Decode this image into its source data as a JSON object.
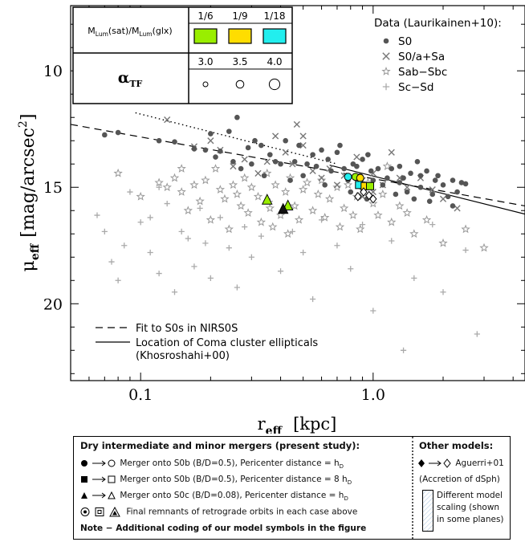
{
  "chart_data": {
    "type": "scatter",
    "xlabel": "r",
    "xlabel_sub": "eff",
    "xlabel_unit": "[kpc]",
    "ylabel": "μ",
    "ylabel_sub": "eff",
    "ylabel_unit": "[mag/arcsec",
    "ylabel_sup": "2",
    "ylabel_close": "]",
    "x_scale": "log",
    "xlim": [
      0.05,
      4.5
    ],
    "ylim": [
      23.3,
      7.2
    ],
    "x_ticks": [
      {
        "value": 0.1,
        "label": "0.1"
      },
      {
        "value": 1.0,
        "label": "1.0"
      }
    ],
    "y_ticks": [
      {
        "value": 10,
        "label": "10"
      },
      {
        "value": 15,
        "label": "15"
      },
      {
        "value": 20,
        "label": "20"
      }
    ],
    "legend_data_title": "Data (Laurikainen+10):",
    "legend_entries": [
      {
        "symbol": "dot",
        "label": "S0",
        "color": "#555555"
      },
      {
        "symbol": "cross",
        "label": "S0/a+Sa",
        "color": "#777777"
      },
      {
        "symbol": "star",
        "label": "Sab−Sbc",
        "color": "#999999"
      },
      {
        "symbol": "plus",
        "label": "Sc−Sd",
        "color": "#aaaaaa"
      }
    ],
    "ratio_table": {
      "row1_label": "M",
      "row1_label_parts": [
        "Lum",
        "(sat)/M",
        "Lum",
        "(glx)"
      ],
      "ratios": [
        "1/6",
        "1/9",
        "1/18"
      ],
      "colors": [
        "#99ee00",
        "#ffdd00",
        "#22eeee"
      ],
      "alpha_label": "α",
      "alpha_sub": "TF",
      "alpha_values": [
        "3.0",
        "3.5",
        "4.0"
      ]
    },
    "lines": [
      {
        "name": "Fit to S0s in NIRS0S",
        "style": "dashed",
        "points": [
          [
            0.05,
            12.3
          ],
          [
            4.5,
            15.8
          ]
        ]
      },
      {
        "name": "Location of Coma cluster ellipticals (Khosroshahi+00)",
        "style": "solid",
        "points": [
          [
            0.65,
            14.05
          ],
          [
            4.5,
            16.15
          ]
        ]
      },
      {
        "name": "",
        "style": "dotted",
        "points": [
          [
            0.095,
            11.8
          ],
          [
            0.7,
            14.0
          ]
        ]
      }
    ],
    "line_legend": [
      {
        "style": "dashed",
        "label": "Fit to S0s in NIRS0S"
      },
      {
        "style": "solid",
        "label": "Location of Coma cluster ellipticals"
      },
      {
        "style": "none",
        "label": "(Khosroshahi+00)"
      }
    ],
    "series": [
      {
        "name": "S0",
        "marker": "dot",
        "points": [
          [
            0.07,
            12.75
          ],
          [
            0.08,
            12.65
          ],
          [
            0.12,
            13.0
          ],
          [
            0.14,
            13.05
          ],
          [
            0.17,
            13.35
          ],
          [
            0.19,
            13.4
          ],
          [
            0.2,
            12.7
          ],
          [
            0.21,
            13.7
          ],
          [
            0.22,
            13.45
          ],
          [
            0.24,
            12.6
          ],
          [
            0.25,
            13.9
          ],
          [
            0.26,
            12.0
          ],
          [
            0.27,
            14.2
          ],
          [
            0.29,
            13.3
          ],
          [
            0.3,
            14.0
          ],
          [
            0.31,
            13.0
          ],
          [
            0.33,
            13.2
          ],
          [
            0.34,
            14.5
          ],
          [
            0.36,
            13.6
          ],
          [
            0.38,
            13.9
          ],
          [
            0.4,
            14.0
          ],
          [
            0.42,
            13.0
          ],
          [
            0.44,
            14.7
          ],
          [
            0.46,
            13.9
          ],
          [
            0.48,
            13.2
          ],
          [
            0.5,
            14.5
          ],
          [
            0.52,
            14.0
          ],
          [
            0.55,
            13.6
          ],
          [
            0.57,
            14.1
          ],
          [
            0.6,
            13.4
          ],
          [
            0.62,
            14.9
          ],
          [
            0.64,
            13.8
          ],
          [
            0.66,
            14.3
          ],
          [
            0.7,
            13.5
          ],
          [
            0.72,
            13.2
          ],
          [
            0.75,
            14.2
          ],
          [
            0.78,
            14.7
          ],
          [
            0.82,
            14.0
          ],
          [
            0.85,
            14.1
          ],
          [
            0.88,
            14.5
          ],
          [
            0.9,
            13.8
          ],
          [
            0.95,
            13.6
          ],
          [
            0.98,
            14.3
          ],
          [
            1.0,
            14.7
          ],
          [
            1.05,
            14.2
          ],
          [
            1.1,
            14.9
          ],
          [
            1.15,
            14.6
          ],
          [
            1.2,
            14.2
          ],
          [
            1.25,
            15.3
          ],
          [
            1.3,
            14.8
          ],
          [
            1.35,
            14.6
          ],
          [
            1.4,
            15.2
          ],
          [
            1.45,
            14.4
          ],
          [
            1.5,
            15.5
          ],
          [
            1.55,
            13.9
          ],
          [
            1.6,
            15.0
          ],
          [
            1.7,
            14.3
          ],
          [
            1.8,
            15.3
          ],
          [
            1.9,
            14.5
          ],
          [
            2.0,
            14.9
          ],
          [
            2.1,
            15.4
          ],
          [
            2.2,
            14.7
          ],
          [
            2.3,
            15.2
          ],
          [
            2.4,
            14.8
          ],
          [
            2.5,
            14.85
          ],
          [
            1.3,
            14.1
          ],
          [
            1.6,
            14.5
          ],
          [
            1.75,
            15.6
          ],
          [
            2.2,
            15.8
          ],
          [
            0.94,
            15.5
          ],
          [
            1.85,
            14.7
          ],
          [
            0.8,
            15.2
          ]
        ]
      },
      {
        "name": "S0/a+Sa",
        "marker": "cross",
        "points": [
          [
            0.13,
            12.1
          ],
          [
            0.17,
            13.25
          ],
          [
            0.2,
            13.0
          ],
          [
            0.22,
            13.4
          ],
          [
            0.25,
            14.1
          ],
          [
            0.28,
            13.8
          ],
          [
            0.32,
            14.4
          ],
          [
            0.35,
            13.9
          ],
          [
            0.38,
            12.8
          ],
          [
            0.42,
            13.5
          ],
          [
            0.45,
            14.0
          ],
          [
            0.5,
            13.2
          ],
          [
            0.55,
            14.3
          ],
          [
            0.6,
            14.6
          ],
          [
            0.65,
            14.2
          ],
          [
            0.7,
            14.9
          ],
          [
            0.75,
            14.5
          ],
          [
            0.85,
            13.7
          ],
          [
            0.9,
            14.7
          ],
          [
            1.0,
            14.4
          ],
          [
            1.1,
            14.9
          ],
          [
            1.2,
            13.5
          ],
          [
            1.3,
            14.6
          ],
          [
            1.4,
            15.0
          ],
          [
            1.6,
            14.6
          ],
          [
            1.8,
            15.1
          ],
          [
            2.0,
            15.5
          ],
          [
            2.3,
            15.9
          ],
          [
            0.47,
            12.3
          ],
          [
            0.5,
            12.8
          ],
          [
            0.9,
            15.4
          ],
          [
            1.0,
            15.2
          ]
        ]
      },
      {
        "name": "Sab−Sbc",
        "marker": "star",
        "points": [
          [
            0.08,
            14.4
          ],
          [
            0.1,
            15.4
          ],
          [
            0.12,
            14.8
          ],
          [
            0.13,
            15.0
          ],
          [
            0.14,
            14.6
          ],
          [
            0.15,
            15.2
          ],
          [
            0.16,
            16.0
          ],
          [
            0.17,
            14.9
          ],
          [
            0.18,
            15.6
          ],
          [
            0.19,
            14.7
          ],
          [
            0.2,
            16.4
          ],
          [
            0.21,
            14.2
          ],
          [
            0.22,
            15.1
          ],
          [
            0.23,
            15.5
          ],
          [
            0.24,
            16.8
          ],
          [
            0.25,
            14.9
          ],
          [
            0.26,
            15.3
          ],
          [
            0.27,
            15.8
          ],
          [
            0.28,
            14.6
          ],
          [
            0.29,
            16.1
          ],
          [
            0.3,
            15.0
          ],
          [
            0.32,
            15.4
          ],
          [
            0.33,
            16.5
          ],
          [
            0.35,
            14.4
          ],
          [
            0.36,
            15.9
          ],
          [
            0.38,
            14.9
          ],
          [
            0.4,
            16.2
          ],
          [
            0.42,
            15.2
          ],
          [
            0.44,
            14.6
          ],
          [
            0.46,
            15.8
          ],
          [
            0.48,
            16.4
          ],
          [
            0.5,
            15.1
          ],
          [
            0.52,
            14.8
          ],
          [
            0.55,
            16.0
          ],
          [
            0.58,
            15.3
          ],
          [
            0.6,
            14.7
          ],
          [
            0.62,
            16.3
          ],
          [
            0.65,
            15.5
          ],
          [
            0.7,
            15.0
          ],
          [
            0.72,
            16.7
          ],
          [
            0.75,
            15.9
          ],
          [
            0.78,
            14.9
          ],
          [
            0.82,
            16.2
          ],
          [
            0.85,
            15.4
          ],
          [
            0.88,
            16.8
          ],
          [
            0.9,
            15.1
          ],
          [
            0.95,
            14.8
          ],
          [
            1.0,
            15.7
          ],
          [
            1.05,
            16.2
          ],
          [
            1.1,
            15.3
          ],
          [
            1.2,
            16.5
          ],
          [
            1.3,
            15.8
          ],
          [
            1.4,
            16.1
          ],
          [
            1.5,
            17.0
          ],
          [
            1.7,
            16.4
          ],
          [
            2.0,
            17.4
          ],
          [
            2.5,
            16.8
          ],
          [
            3.0,
            17.6
          ],
          [
            0.15,
            14.2
          ],
          [
            0.37,
            16.7
          ],
          [
            0.43,
            17.0
          ],
          [
            1.15,
            14.1
          ]
        ]
      },
      {
        "name": "Sc−Sd",
        "marker": "plus",
        "points": [
          [
            0.065,
            16.2
          ],
          [
            0.07,
            16.9
          ],
          [
            0.075,
            18.2
          ],
          [
            0.08,
            19.0
          ],
          [
            0.085,
            17.5
          ],
          [
            0.09,
            15.2
          ],
          [
            0.1,
            16.5
          ],
          [
            0.11,
            17.8
          ],
          [
            0.12,
            18.7
          ],
          [
            0.13,
            15.7
          ],
          [
            0.14,
            19.5
          ],
          [
            0.15,
            16.9
          ],
          [
            0.16,
            17.2
          ],
          [
            0.17,
            18.4
          ],
          [
            0.18,
            15.9
          ],
          [
            0.19,
            17.4
          ],
          [
            0.2,
            18.9
          ],
          [
            0.22,
            16.3
          ],
          [
            0.24,
            17.6
          ],
          [
            0.26,
            19.3
          ],
          [
            0.28,
            16.7
          ],
          [
            0.3,
            18.0
          ],
          [
            0.33,
            17.1
          ],
          [
            0.36,
            15.6
          ],
          [
            0.4,
            18.6
          ],
          [
            0.45,
            16.9
          ],
          [
            0.5,
            17.8
          ],
          [
            0.55,
            19.8
          ],
          [
            0.6,
            16.4
          ],
          [
            0.7,
            17.5
          ],
          [
            0.8,
            18.5
          ],
          [
            0.9,
            16.6
          ],
          [
            1.0,
            20.3
          ],
          [
            1.2,
            17.3
          ],
          [
            1.5,
            18.9
          ],
          [
            1.8,
            16.6
          ],
          [
            2.0,
            19.5
          ],
          [
            2.5,
            17.7
          ],
          [
            2.8,
            21.3
          ],
          [
            1.35,
            22.0
          ],
          [
            0.12,
            15.0
          ],
          [
            0.11,
            16.3
          ]
        ]
      }
    ],
    "model_points": [
      {
        "marker": "triangle",
        "x": 0.35,
        "y": 15.55,
        "fill": "#99ee00"
      },
      {
        "marker": "triangle",
        "x": 0.43,
        "y": 15.8,
        "fill": "#99ee00"
      },
      {
        "marker": "triangle",
        "x": 0.41,
        "y": 15.95,
        "fill": "#111111"
      },
      {
        "marker": "circle",
        "x": 0.78,
        "y": 14.55,
        "fill": "#22eeee"
      },
      {
        "marker": "circle",
        "x": 0.84,
        "y": 14.55,
        "fill": "#99ee00"
      },
      {
        "marker": "circle",
        "x": 0.88,
        "y": 14.6,
        "fill": "#ffdd00"
      },
      {
        "marker": "square",
        "x": 0.87,
        "y": 14.9,
        "fill": "#22eeee"
      },
      {
        "marker": "square",
        "x": 0.92,
        "y": 14.95,
        "fill": "#ffdd00"
      },
      {
        "marker": "square",
        "x": 0.97,
        "y": 14.95,
        "fill": "#99ee00"
      },
      {
        "marker": "diamond",
        "x": 0.86,
        "y": 15.4,
        "fill": "#ffffff"
      },
      {
        "marker": "diamond",
        "x": 0.91,
        "y": 15.2,
        "fill": "#ffffff"
      },
      {
        "marker": "diamond",
        "x": 0.96,
        "y": 15.35,
        "fill": "#ffffff"
      },
      {
        "marker": "diamond",
        "x": 1.0,
        "y": 15.5,
        "fill": "#ffffff"
      }
    ]
  },
  "legend_panel": {
    "left_title": "Dry intermediate and minor mergers (present study):",
    "rows": [
      {
        "arrow": "→",
        "text": "Merger onto S0b (B/D=0.5), Pericenter distance = h",
        "sub": "D"
      },
      {
        "arrow": "→",
        "text": "Merger onto S0b (B/D=0.5), Pericenter distance = 8 h",
        "sub": "D"
      },
      {
        "arrow": "→",
        "text": "Merger onto S0c (B/D=0.08), Pericenter distance = h",
        "sub": "D"
      }
    ],
    "remnants_text": "Final remnants of retrograde orbits in each case above",
    "note_text": "Note − Additional coding of our model symbols in the figure",
    "right_title": "Other models:",
    "aguerri_arrow": "→",
    "aguerri_text": "Aguerri+01",
    "aguerri_sub": "(Accretion of dSph)",
    "scaling_lines": [
      "Different model",
      "scaling (shown",
      "in some planes)"
    ]
  }
}
